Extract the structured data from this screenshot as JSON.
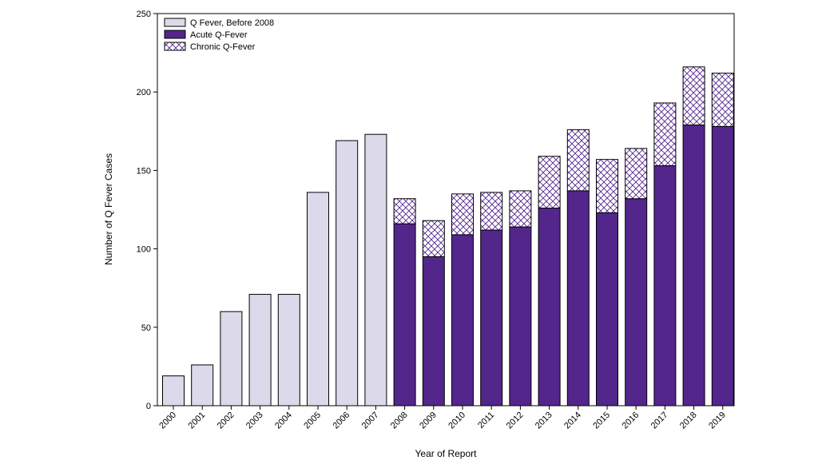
{
  "chart_data": {
    "type": "bar",
    "stacked": true,
    "xlabel": "Year of Report",
    "ylabel": "Number of Q Fever Cases",
    "ylim": [
      0,
      250
    ],
    "yticks": [
      "0",
      "50",
      "100",
      "150",
      "200",
      "250"
    ],
    "grid": false,
    "legend_placement": "top-left",
    "categories": [
      "2000",
      "2001",
      "2002",
      "2003",
      "2004",
      "2005",
      "2006",
      "2007",
      "2008",
      "2009",
      "2010",
      "2011",
      "2012",
      "2013",
      "2014",
      "2015",
      "2016",
      "2017",
      "2018",
      "2019"
    ],
    "series": [
      {
        "name": "Q Fever, Before 2008",
        "color": "#dcdaea",
        "pattern": "solid",
        "values": [
          19,
          26,
          60,
          71,
          71,
          136,
          169,
          173,
          0,
          0,
          0,
          0,
          0,
          0,
          0,
          0,
          0,
          0,
          0,
          0
        ]
      },
      {
        "name": "Acute Q-Fever",
        "color": "#53268c",
        "pattern": "solid",
        "values": [
          0,
          0,
          0,
          0,
          0,
          0,
          0,
          0,
          116,
          95,
          109,
          112,
          114,
          126,
          137,
          123,
          132,
          153,
          179,
          178
        ]
      },
      {
        "name": "Chronic Q-Fever",
        "color": "#53268c",
        "pattern": "crosshatch",
        "values": [
          0,
          0,
          0,
          0,
          0,
          0,
          0,
          0,
          16,
          23,
          26,
          24,
          23,
          33,
          39,
          34,
          32,
          40,
          37,
          34
        ]
      }
    ]
  }
}
